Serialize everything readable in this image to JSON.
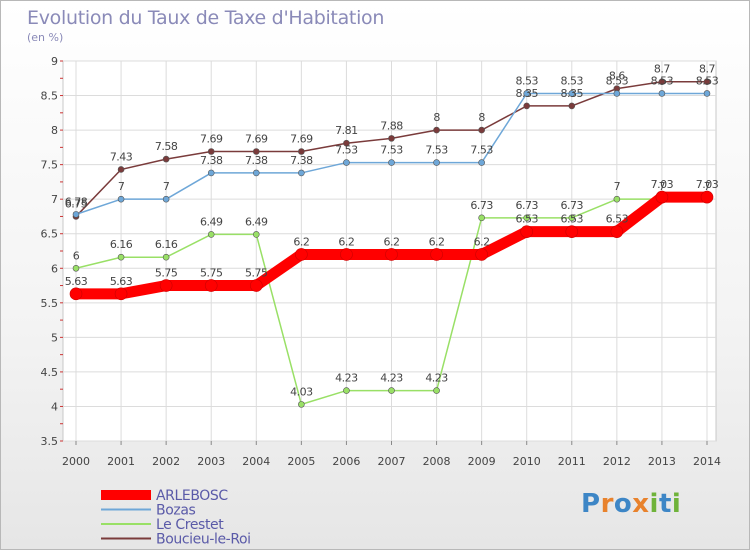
{
  "title": "Evolution du Taux de Taxe d'Habitation",
  "subtitle": "(en %)",
  "brand": "Proxiti",
  "chart_data": {
    "type": "line",
    "x": [
      2000,
      2001,
      2002,
      2003,
      2004,
      2005,
      2006,
      2007,
      2008,
      2009,
      2010,
      2011,
      2012,
      2013,
      2014
    ],
    "ylim": [
      3.5,
      9
    ],
    "yticks": [
      "3.5",
      "4",
      "4.5",
      "5",
      "5.5",
      "6",
      "6.5",
      "7",
      "7.5",
      "8",
      "8.5",
      "9"
    ],
    "grid": true,
    "legend": "bottom-left",
    "series": [
      {
        "name": "ARLEBOSC",
        "color": "#ff0000",
        "values": [
          5.63,
          5.63,
          5.75,
          5.75,
          5.75,
          6.2,
          6.2,
          6.2,
          6.2,
          6.2,
          6.53,
          6.53,
          6.53,
          7.03,
          7.03
        ],
        "labels": [
          "5.63",
          "5.63",
          "5.75",
          "5.75",
          "5.75",
          "6.2",
          "6.2",
          "6.2",
          "6.2",
          "6.2",
          "6.53",
          "6.53",
          "6.53",
          "7.03",
          "7.03"
        ]
      },
      {
        "name": "Bozas",
        "color": "#6ea7d8",
        "values": [
          6.78,
          7,
          7,
          7.38,
          7.38,
          7.38,
          7.53,
          7.53,
          7.53,
          7.53,
          8.53,
          8.53,
          8.53,
          8.53,
          8.53
        ],
        "labels": [
          "6.78",
          "7",
          "7",
          "7.38",
          "7.38",
          "7.38",
          "7.53",
          "7.53",
          "7.53",
          "7.53",
          "8.53",
          "8.53",
          "8.53",
          "8.53",
          "8.53"
        ]
      },
      {
        "name": "Le Crestet",
        "color": "#99e066",
        "values": [
          6,
          6.16,
          6.16,
          6.49,
          6.49,
          4.03,
          4.23,
          4.23,
          4.23,
          6.73,
          6.73,
          6.73,
          7,
          7,
          7
        ],
        "labels": [
          "6",
          "6.16",
          "6.16",
          "6.49",
          "6.49",
          "4.03",
          "4.23",
          "4.23",
          "4.23",
          "6.73",
          "6.73",
          "6.73",
          "7",
          "7",
          "7"
        ]
      },
      {
        "name": "Boucieu-le-Roi",
        "color": "#7a3b3b",
        "values": [
          6.75,
          7.43,
          7.58,
          7.69,
          7.69,
          7.69,
          7.81,
          7.88,
          8,
          8,
          8.35,
          8.35,
          8.6,
          8.7,
          8.7
        ],
        "labels": [
          "6.75",
          "7.43",
          "7.58",
          "7.69",
          "7.69",
          "7.69",
          "7.81",
          "7.88",
          "8",
          "8",
          "8.35",
          "8.35",
          "8.6",
          "8.7",
          "8.7"
        ]
      }
    ]
  }
}
